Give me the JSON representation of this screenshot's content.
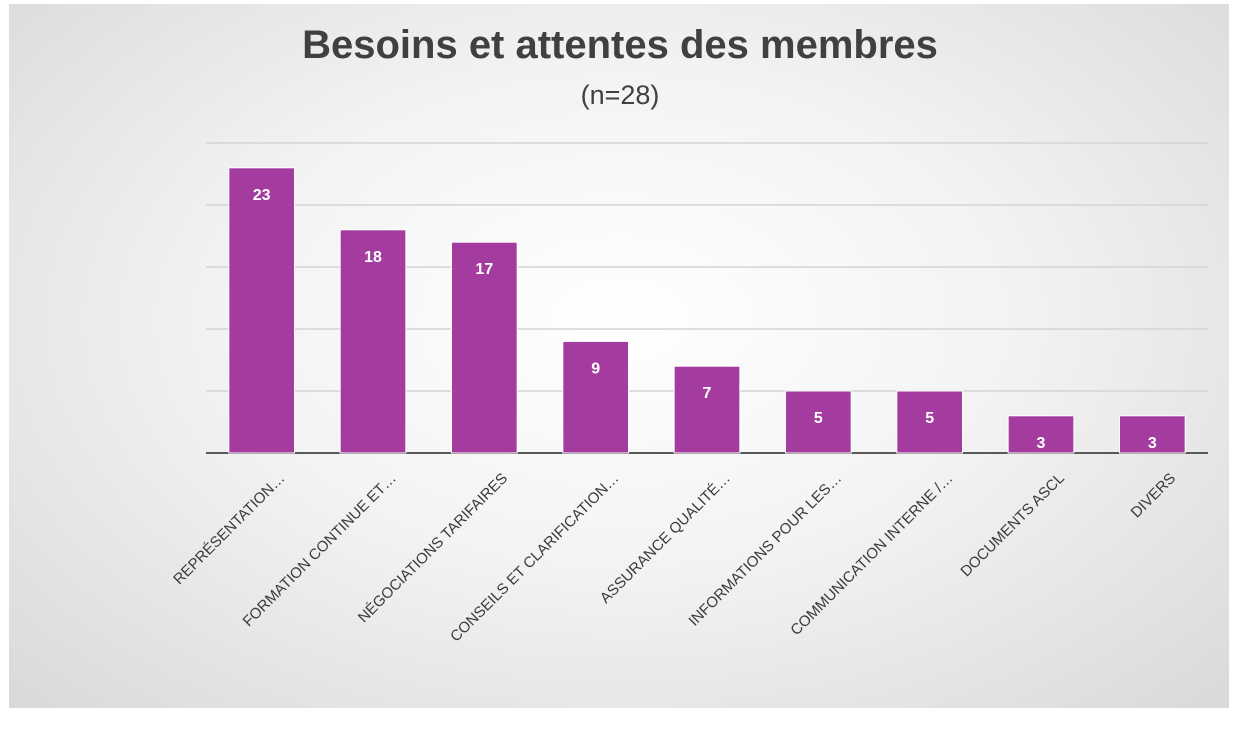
{
  "chart_data": {
    "type": "bar",
    "title": "Besoins et attentes des membres",
    "subtitle": "(n=28)",
    "categories": [
      "REPRÉSENTATION…",
      "FORMATION CONTINUE  ET…",
      "NÉGOCIATIONS TARIFAIRES",
      "CONSEILS ET CLARIFICATION…",
      "ASSURANCE QUALITÉ…",
      "INFORMATIONS POUR LES…",
      "COMMUNICATION INTERNE /…",
      "DOCUMENTS ASCL",
      "DIVERS"
    ],
    "values": [
      23,
      18,
      17,
      9,
      7,
      5,
      5,
      3,
      3
    ],
    "ylim": [
      0,
      25
    ],
    "grid": true,
    "legend": "none",
    "bar_color": "#a43c9f"
  }
}
